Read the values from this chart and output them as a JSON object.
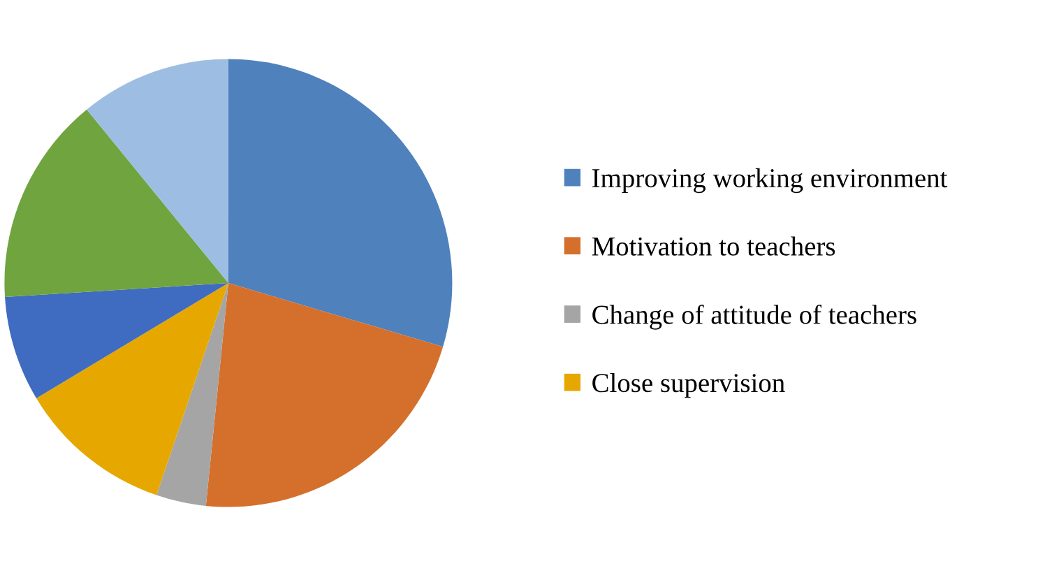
{
  "chart_data": {
    "type": "pie",
    "categories": [
      "Improving working environment",
      "Motivation to teachers",
      "Change of attitude of teachers",
      "Close supervision",
      null,
      null,
      null
    ],
    "values": [
      29.6,
      22.0,
      3.6,
      11.2,
      7.6,
      15.1,
      10.9
    ],
    "colors": [
      "#4f81bd",
      "#d4702c",
      "#a5a5a5",
      "#e6a800",
      "#3f6cc0",
      "#6fa43f",
      "#9dbde3"
    ],
    "legend": "right"
  }
}
